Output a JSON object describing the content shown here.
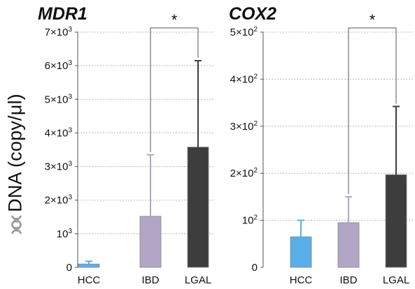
{
  "figure": {
    "ylabel": "DNA (copy/μl)",
    "ylabel_icon": "dna-helix-icon"
  },
  "chart_data": [
    {
      "type": "bar",
      "title": "MDR1",
      "categories": [
        "HCC",
        "IBD",
        "LGAL"
      ],
      "values": [
        100,
        1520,
        3580
      ],
      "error_upper": [
        180,
        3350,
        6150
      ],
      "colors": [
        "#5aaee8",
        "#b2a5c6",
        "#3d3d3d"
      ],
      "ylim": [
        0,
        7000
      ],
      "yticks": [
        0,
        1000,
        2000,
        3000,
        4000,
        5000,
        6000,
        7000
      ],
      "ytick_labels": [
        {
          "base": "0",
          "exp": ""
        },
        {
          "base": "10",
          "exp": "3"
        },
        {
          "base": "2×10",
          "exp": "3"
        },
        {
          "base": "3×10",
          "exp": "3"
        },
        {
          "base": "4×10",
          "exp": "3"
        },
        {
          "base": "5×10",
          "exp": "3"
        },
        {
          "base": "6×10",
          "exp": "3"
        },
        {
          "base": "7×10",
          "exp": "3"
        }
      ],
      "grid": true,
      "significance": {
        "from": "IBD",
        "to": "LGAL",
        "label": "*"
      }
    },
    {
      "type": "bar",
      "title": "COX2",
      "categories": [
        "HCC",
        "IBD",
        "LGAL"
      ],
      "values": [
        65,
        95,
        197
      ],
      "error_upper": [
        100,
        150,
        342
      ],
      "colors": [
        "#5aaee8",
        "#b2a5c6",
        "#3d3d3d"
      ],
      "ylim": [
        0,
        500
      ],
      "yticks": [
        0,
        100,
        200,
        300,
        400,
        500
      ],
      "ytick_labels": [
        {
          "base": "0",
          "exp": ""
        },
        {
          "base": "10",
          "exp": "2"
        },
        {
          "base": "2×10",
          "exp": "2"
        },
        {
          "base": "3×10",
          "exp": "2"
        },
        {
          "base": "4×10",
          "exp": "2"
        },
        {
          "base": "5×10",
          "exp": "2"
        }
      ],
      "grid": true,
      "significance": {
        "from": "IBD",
        "to": "LGAL",
        "label": "*"
      }
    }
  ]
}
